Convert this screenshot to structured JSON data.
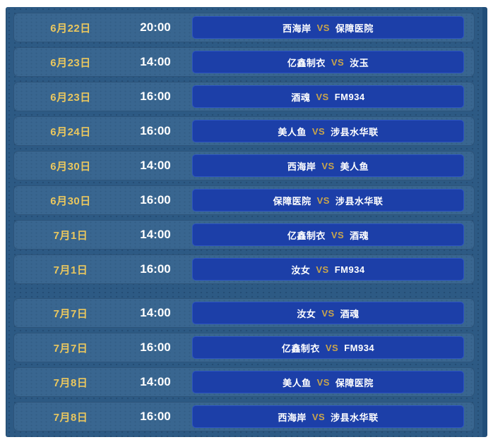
{
  "colors": {
    "page_background": "#ffffff",
    "board_background": "#2d5a84",
    "row_background": "#396690",
    "button_background": "#1c3fa8",
    "button_border": "#2d54c2",
    "date_text": "#eac75e",
    "time_text": "#ffffff",
    "team_text": "#ffffff",
    "vs_text": "#c9a54b"
  },
  "schedule": {
    "vs_label": "VS",
    "rows": [
      {
        "date": "6月22日",
        "time": "20:00",
        "home": "西海岸",
        "away": "保障医院",
        "group": 1
      },
      {
        "date": "6月23日",
        "time": "14:00",
        "home": "亿鑫制衣",
        "away": "汝玉",
        "group": 1
      },
      {
        "date": "6月23日",
        "time": "16:00",
        "home": "酒魂",
        "away": "FM934",
        "group": 1
      },
      {
        "date": "6月24日",
        "time": "16:00",
        "home": "美人鱼",
        "away": "涉县水华联",
        "group": 1
      },
      {
        "date": "6月30日",
        "time": "14:00",
        "home": "西海岸",
        "away": "美人鱼",
        "group": 1
      },
      {
        "date": "6月30日",
        "time": "16:00",
        "home": "保障医院",
        "away": "涉县水华联",
        "group": 1
      },
      {
        "date": "7月1日",
        "time": "14:00",
        "home": "亿鑫制衣",
        "away": "酒魂",
        "group": 1
      },
      {
        "date": "7月1日",
        "time": "16:00",
        "home": "汝女",
        "away": "FM934",
        "group": 1
      },
      {
        "date": "7月7日",
        "time": "14:00",
        "home": "汝女",
        "away": "酒魂",
        "group": 2
      },
      {
        "date": "7月7日",
        "time": "16:00",
        "home": "亿鑫制衣",
        "away": "FM934",
        "group": 2
      },
      {
        "date": "7月8日",
        "time": "14:00",
        "home": "美人鱼",
        "away": "保障医院",
        "group": 2
      },
      {
        "date": "7月8日",
        "time": "16:00",
        "home": "西海岸",
        "away": "涉县水华联",
        "group": 2
      }
    ]
  }
}
